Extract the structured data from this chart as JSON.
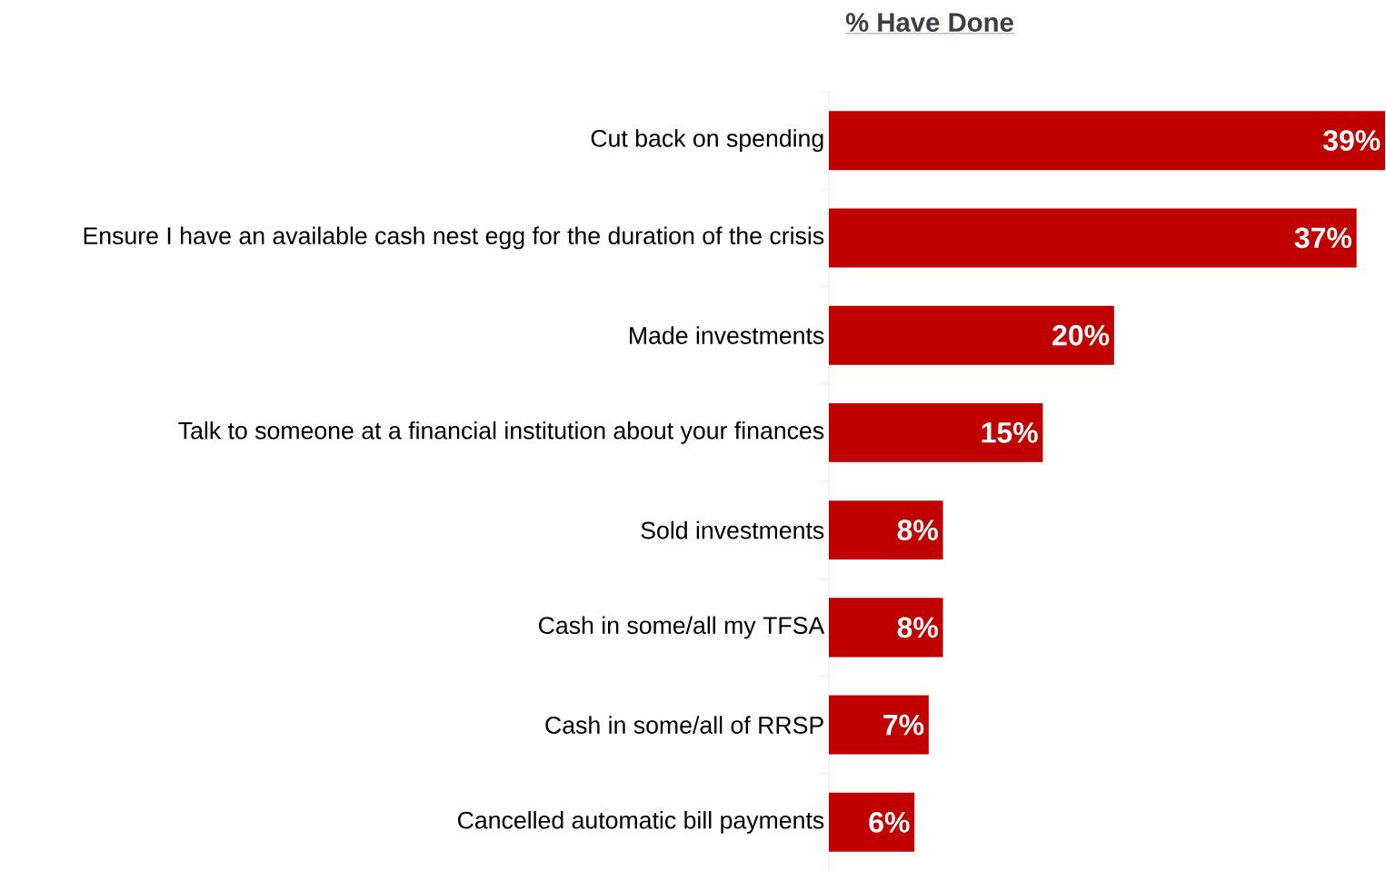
{
  "chart_data": {
    "type": "bar",
    "orientation": "horizontal",
    "title": "% Have Done",
    "categories": [
      "Cut back on spending",
      "Ensure I have an available cash nest egg for the duration of the crisis",
      "Made investments",
      "Talk to someone at a financial institution about your finances",
      "Sold investments",
      "Cash in some/all my TFSA",
      "Cash in some/all of RRSP",
      "Cancelled automatic bill payments"
    ],
    "values": [
      39,
      37,
      20,
      15,
      8,
      8,
      7,
      6
    ],
    "value_labels": [
      "39%",
      "37%",
      "20%",
      "15%",
      "8%",
      "8%",
      "7%",
      "6%"
    ],
    "color": "#c00000"
  }
}
